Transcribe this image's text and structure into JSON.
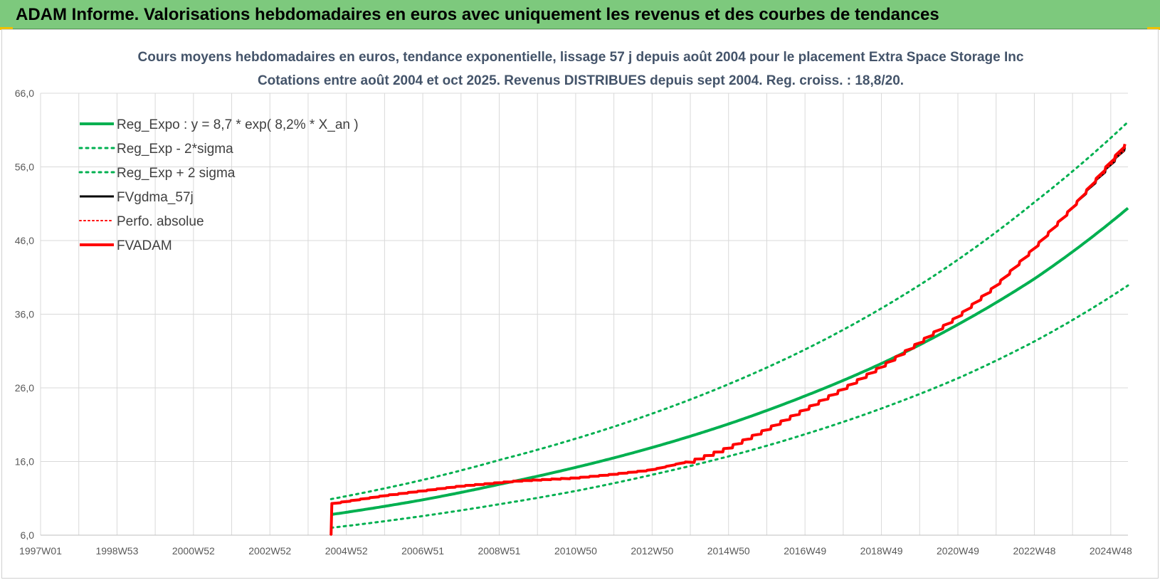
{
  "header": {
    "title": "ADAM Informe. Valorisations hebdomadaires en euros avec uniquement les revenus et des courbes de tendances"
  },
  "colors": {
    "header_bg": "#7dc97d",
    "green": "#00b050",
    "red": "#ff0000",
    "black": "#000000",
    "grid": "#d9d9d9"
  },
  "chart_data": {
    "type": "line",
    "title_lines": [
      "Cours moyens hebdomadaires en euros, tendance exponentielle, lissage 57 j depuis août 2004 pour le placement Extra Space Storage Inc",
      "Cotations entre août 2004 et oct 2025. Revenus DISTRIBUES depuis sept 2004. Reg. croiss. : 18,8/20."
    ],
    "x_ticks": [
      "1997W01",
      "1998W53",
      "2000W52",
      "2002W52",
      "2004W52",
      "2006W51",
      "2008W51",
      "2010W50",
      "2012W50",
      "2014W50",
      "2016W49",
      "2018W49",
      "2020W49",
      "2022W48",
      "2024W48"
    ],
    "x_tick_years": [
      1997.0,
      1999.0,
      2001.0,
      2003.0,
      2005.0,
      2007.0,
      2009.0,
      2011.0,
      2013.0,
      2015.0,
      2017.0,
      2019.0,
      2021.0,
      2023.0,
      2025.0
    ],
    "xlim": [
      1997.0,
      2025.45
    ],
    "ylim": [
      6.0,
      66.0
    ],
    "y_ticks": [
      "6,0",
      "16,0",
      "26,0",
      "36,0",
      "46,0",
      "56,0",
      "66,0"
    ],
    "y_tick_values": [
      6,
      16,
      26,
      36,
      46,
      56,
      66
    ],
    "grid": true,
    "legend_position": "top-left",
    "legend": [
      {
        "label": "Reg_Expo : y = 8,7 * exp( 8,2% *  X_an )",
        "color": "#00b050",
        "style": "solid",
        "width": 4
      },
      {
        "label": "Reg_Exp - 2*sigma",
        "color": "#00b050",
        "style": "dotted",
        "width": 3
      },
      {
        "label": "Reg_Exp + 2 sigma",
        "color": "#00b050",
        "style": "dotted",
        "width": 3
      },
      {
        "label": "FVgdma_57j",
        "color": "#000000",
        "style": "solid",
        "width": 3
      },
      {
        "label": "Perfo. absolue",
        "color": "#ff0000",
        "style": "dotted",
        "width": 2
      },
      {
        "label": "FVADAM",
        "color": "#ff0000",
        "style": "solid",
        "width": 4
      }
    ],
    "series": [
      {
        "name": "Reg_Expo : y = 8,7 * exp( 8,2% *  X_an )",
        "x": [
          2004.6,
          2007,
          2009,
          2011,
          2013,
          2015,
          2017,
          2019,
          2021,
          2023,
          2025.45
        ],
        "y": [
          8.8,
          10.8,
          12.9,
          15.2,
          17.9,
          21.1,
          24.9,
          29.3,
          34.6,
          40.8,
          50.4
        ]
      },
      {
        "name": "Reg_Exp - 2*sigma",
        "x": [
          2004.6,
          2007,
          2009,
          2011,
          2013,
          2015,
          2017,
          2019,
          2021,
          2023,
          2025.45
        ],
        "y": [
          7.0,
          8.6,
          10.2,
          12.0,
          14.2,
          16.7,
          19.7,
          23.2,
          27.3,
          32.3,
          39.9
        ]
      },
      {
        "name": "Reg_Exp + 2 sigma",
        "x": [
          2004.6,
          2007,
          2009,
          2011,
          2013,
          2015,
          2017,
          2019,
          2021,
          2023,
          2025.45
        ],
        "y": [
          10.9,
          13.5,
          16.2,
          19.1,
          22.5,
          26.5,
          31.2,
          36.8,
          43.4,
          51.2,
          62.1
        ]
      },
      {
        "name": "FVgdma_57j",
        "x": [
          2004.6,
          2004.62,
          2006,
          2008,
          2009.5,
          2011,
          2012,
          2013,
          2014,
          2015,
          2016,
          2017,
          2018,
          2019,
          2020,
          2021,
          2022,
          2023,
          2024,
          2025.45
        ],
        "y": [
          6.0,
          10.3,
          11.4,
          12.7,
          13.4,
          13.8,
          14.3,
          14.9,
          16.1,
          18.0,
          20.5,
          23.2,
          26.0,
          29.0,
          32.3,
          35.8,
          40.0,
          45.1,
          50.6,
          59.1
        ]
      },
      {
        "name": "Perfo. absolue",
        "x": [
          2004.6,
          2004.62,
          2006,
          2008,
          2009.5,
          2011,
          2012,
          2013,
          2014,
          2015,
          2016,
          2017,
          2018,
          2019,
          2020,
          2021,
          2022,
          2023,
          2024,
          2025.45
        ],
        "y": [
          6.0,
          10.3,
          11.4,
          12.7,
          13.4,
          13.8,
          14.3,
          14.9,
          16.1,
          18.0,
          20.5,
          23.2,
          26.0,
          29.0,
          32.3,
          35.8,
          40.0,
          45.1,
          50.6,
          59.1
        ]
      },
      {
        "name": "FVADAM",
        "x": [
          2004.6,
          2004.62,
          2006,
          2008,
          2009.5,
          2011,
          2012,
          2013,
          2014,
          2015,
          2016,
          2017,
          2018,
          2019,
          2020,
          2021,
          2022,
          2023,
          2024,
          2025.45
        ],
        "y": [
          6.0,
          10.3,
          11.4,
          12.7,
          13.4,
          13.8,
          14.3,
          14.9,
          16.1,
          18.0,
          20.5,
          23.2,
          26.0,
          29.0,
          32.3,
          35.8,
          40.0,
          45.1,
          50.6,
          59.6
        ]
      }
    ]
  }
}
